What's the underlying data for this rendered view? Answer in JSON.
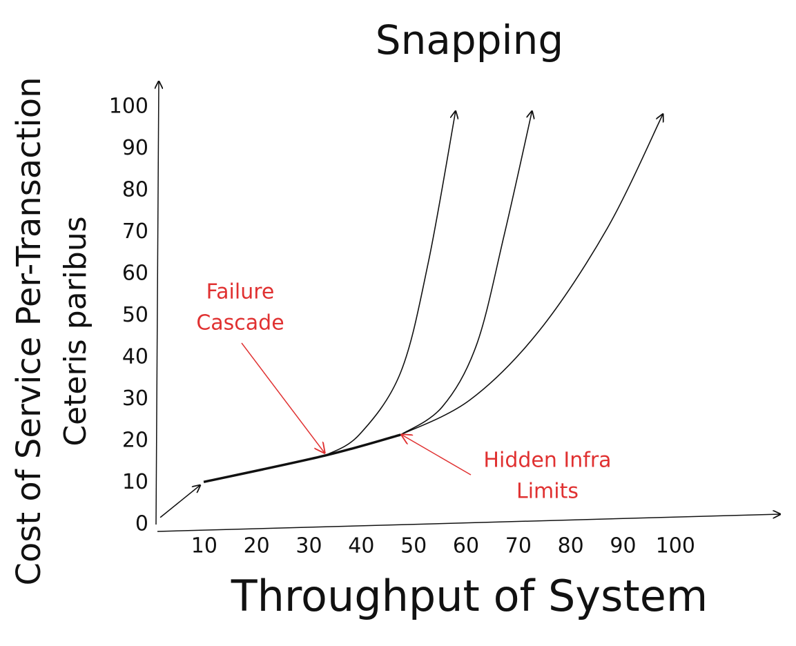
{
  "chart_data": {
    "type": "line",
    "title": "Snapping",
    "xlabel": "Throughput of System",
    "ylabel": [
      "Cost of Service Per-Transaction",
      "Ceteris paribus"
    ],
    "xlim": [
      0,
      120
    ],
    "ylim": [
      0,
      105
    ],
    "xticks": [
      10,
      20,
      30,
      40,
      50,
      60,
      70,
      80,
      90,
      100
    ],
    "yticks": [
      0,
      10,
      20,
      30,
      40,
      50,
      60,
      70,
      80,
      90,
      100
    ],
    "grid": false,
    "series": [
      {
        "color": "#111111",
        "x": [
          1.6,
          9.2
        ],
        "values": [
          1.7,
          9.4
        ]
      },
      {
        "color": "#111111",
        "x": [
          9.9,
          33,
          47.5
        ],
        "values": [
          10.2,
          16.5,
          21.5
        ]
      },
      {
        "color": "#111111",
        "x": [
          33,
          39.6,
          47.5,
          52.8,
          58
        ],
        "values": [
          16.5,
          21.5,
          36.4,
          62.8,
          99
        ]
      },
      {
        "color": "#111111",
        "x": [
          47.5,
          55.4,
          62,
          67.3,
          72.6
        ],
        "values": [
          21.5,
          28.1,
          43,
          69.4,
          99
        ]
      },
      {
        "color": "#111111",
        "x": [
          47.5,
          60.7,
          73.9,
          87,
          97.6
        ],
        "values": [
          21.5,
          29.8,
          46.3,
          71,
          98.3
        ]
      }
    ],
    "annotations": [
      {
        "text": [
          "Failure",
          "Cascade"
        ],
        "color": "#e03131"
      },
      {
        "text": [
          "Hidden Infra",
          "Limits"
        ],
        "color": "#e03131"
      }
    ]
  }
}
